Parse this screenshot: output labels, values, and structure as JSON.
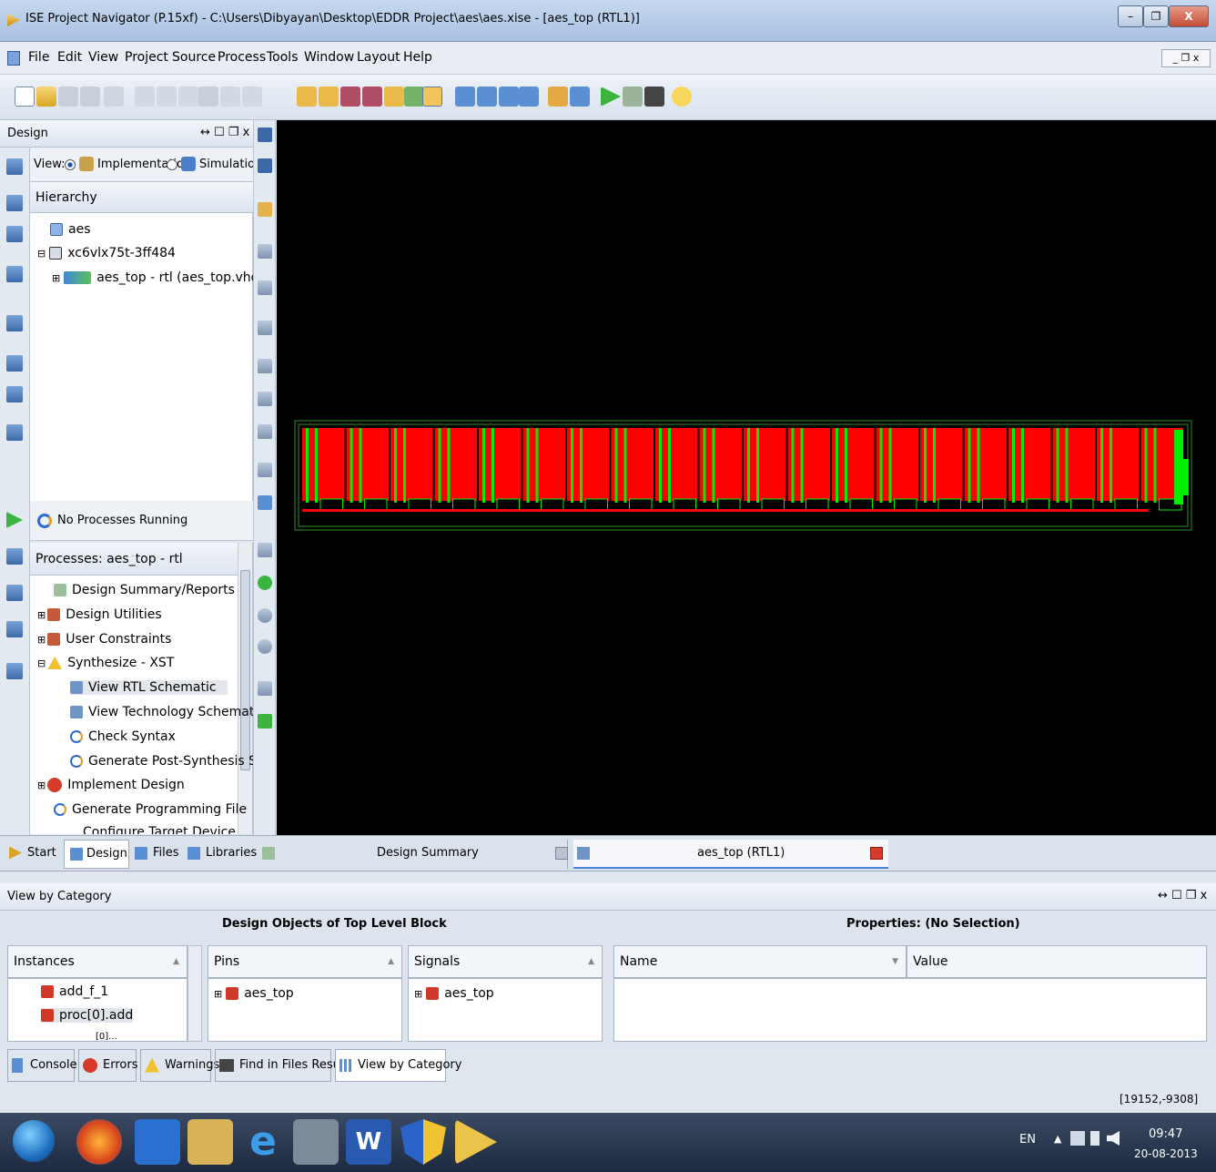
{
  "window": {
    "title": "ISE Project Navigator (P.15xf) - C:\\Users\\Dibyayan\\Desktop\\EDDR Project\\aes\\aes.xise - [aes_top (RTL1)]"
  },
  "menu": [
    "File",
    "Edit",
    "View",
    "Project",
    "Source",
    "Process",
    "Tools",
    "Window",
    "Layout",
    "Help"
  ],
  "design_panel": {
    "title": "Design",
    "view_label": "View:",
    "impl_label": "Implementation",
    "sim_label": "Simulation",
    "hierarchy_label": "Hierarchy",
    "tree": [
      "aes",
      "xc6vlx75t-3ff484",
      "aes_top - rtl (aes_top.vhdl)"
    ]
  },
  "processes": {
    "status": "No Processes Running",
    "header": "Processes: aes_top - rtl",
    "items": [
      "Design Summary/Reports",
      "Design Utilities",
      "User Constraints",
      "Synthesize - XST",
      "View RTL Schematic",
      "View Technology Schematic",
      "Check Syntax",
      "Generate Post-Synthesis Si...",
      "Implement Design",
      "Generate Programming File",
      "Configure Target Device"
    ]
  },
  "left_tabs": [
    "Start",
    "Design",
    "Files",
    "Libraries"
  ],
  "doc_tabs": {
    "summary": "Design Summary",
    "rtl": "aes_top (RTL1)"
  },
  "view_by_category": {
    "title": "View by Category",
    "design_objects_title": "Design Objects of Top Level Block",
    "properties_title": "Properties: (No Selection)",
    "instances_header": "Instances",
    "instances": [
      "add_f_1",
      "proc[0].add",
      "[0]..."
    ],
    "pins_header": "Pins",
    "pins": [
      "aes_top"
    ],
    "signals_header": "Signals",
    "signals": [
      "aes_top"
    ],
    "name_header": "Name",
    "value_header": "Value"
  },
  "bottom_tabs": [
    "Console",
    "Errors",
    "Warnings",
    "Find in Files Results",
    "View by Category"
  ],
  "status": {
    "coords": "[19152,-9308]"
  },
  "taskbar": {
    "lang": "EN",
    "time": "09:47",
    "date": "20-08-2013"
  },
  "colors": {
    "canvas": "#000000",
    "schematic_fill": "#ff0000",
    "schematic_wire": "#00ee00"
  }
}
